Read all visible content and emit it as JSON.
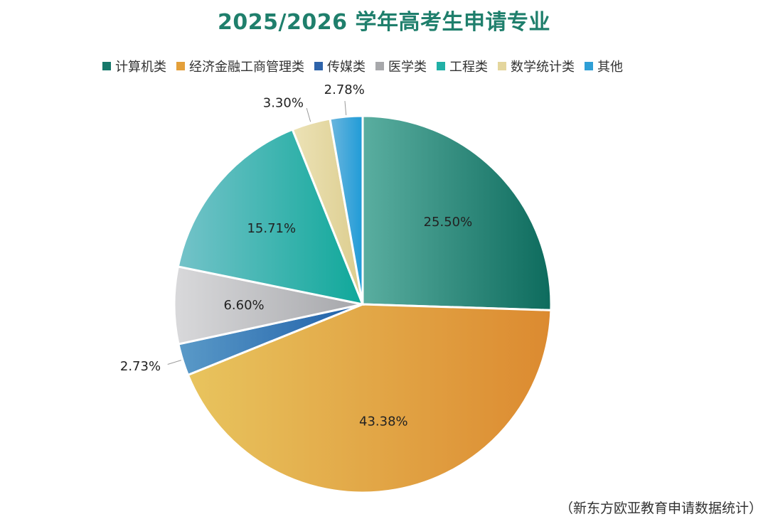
{
  "chart_data": {
    "type": "pie",
    "title": "2025/2026 学年高考生申请专业",
    "legend_position": "top",
    "slices": [
      {
        "label": "计算机类",
        "value": 25.5,
        "display": "25.50%",
        "color_from": "#5aaea0",
        "color_to": "#0d6b5d",
        "legend_color": "#16786a"
      },
      {
        "label": "经济金融工商管理类",
        "value": 43.38,
        "display": "43.38%",
        "color_from": "#e8c45e",
        "color_to": "#dc8a30",
        "legend_color": "#e4a03a"
      },
      {
        "label": "传媒类",
        "value": 2.73,
        "display": "2.73%",
        "color_from": "#5a9ac8",
        "color_to": "#1f5fa8",
        "legend_color": "#2e63aa"
      },
      {
        "label": "医学类",
        "value": 6.6,
        "display": "6.60%",
        "color_from": "#d9d9db",
        "color_to": "#a5a6aa",
        "legend_color": "#a7a8ab"
      },
      {
        "label": "工程类",
        "value": 15.71,
        "display": "15.71%",
        "color_from": "#74c3c9",
        "color_to": "#0fa89a",
        "legend_color": "#21b0a6"
      },
      {
        "label": "数学统计类",
        "value": 3.3,
        "display": "3.30%",
        "color_from": "#ece2b6",
        "color_to": "#dccd8e",
        "legend_color": "#e4d69d"
      },
      {
        "label": "其他",
        "value": 2.78,
        "display": "2.78%",
        "color_from": "#6cb6de",
        "color_to": "#1f9bd7",
        "legend_color": "#2f9fd6"
      }
    ]
  },
  "source": "（新东方欧亚教育申请数据统计）"
}
